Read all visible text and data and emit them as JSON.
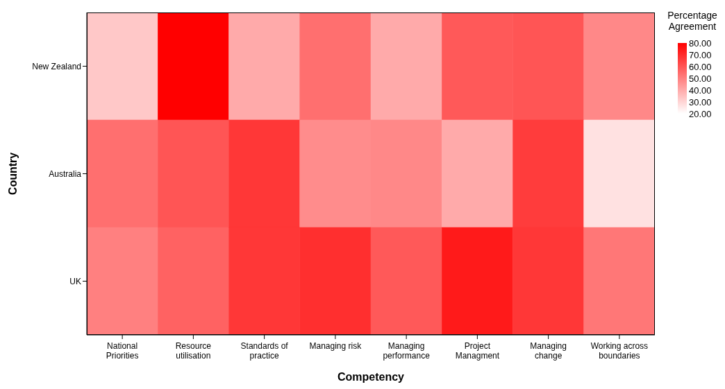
{
  "chart_data": {
    "type": "heatmap",
    "xlabel": "Competency",
    "ylabel": "Country",
    "legend_title": "Percentage Agreement",
    "color": "#ff0000",
    "categories": [
      "National Priorities",
      "Resource utilisation",
      "Standards of practice",
      "Managing risk",
      "Managing performance",
      "Project Managment",
      "Managing change",
      "Working across boundaries"
    ],
    "y_categories": [
      "New Zealand",
      "Australia",
      "UK"
    ],
    "cells": [
      [
        33,
        80,
        40,
        54,
        40,
        59,
        60,
        48
      ],
      [
        54,
        60,
        67,
        47,
        48,
        40,
        66,
        27
      ],
      [
        50,
        57,
        67,
        69,
        59,
        74,
        67,
        52
      ]
    ],
    "clim": [
      20,
      80
    ],
    "cticks": [
      {
        "value": 20,
        "label": "20.00"
      },
      {
        "value": 30,
        "label": "30.00"
      },
      {
        "value": 40,
        "label": "40.00"
      },
      {
        "value": 50,
        "label": "50.00"
      },
      {
        "value": 60,
        "label": "60.00"
      },
      {
        "value": 70,
        "label": "70.00"
      },
      {
        "value": 80,
        "label": "80.00"
      }
    ]
  }
}
